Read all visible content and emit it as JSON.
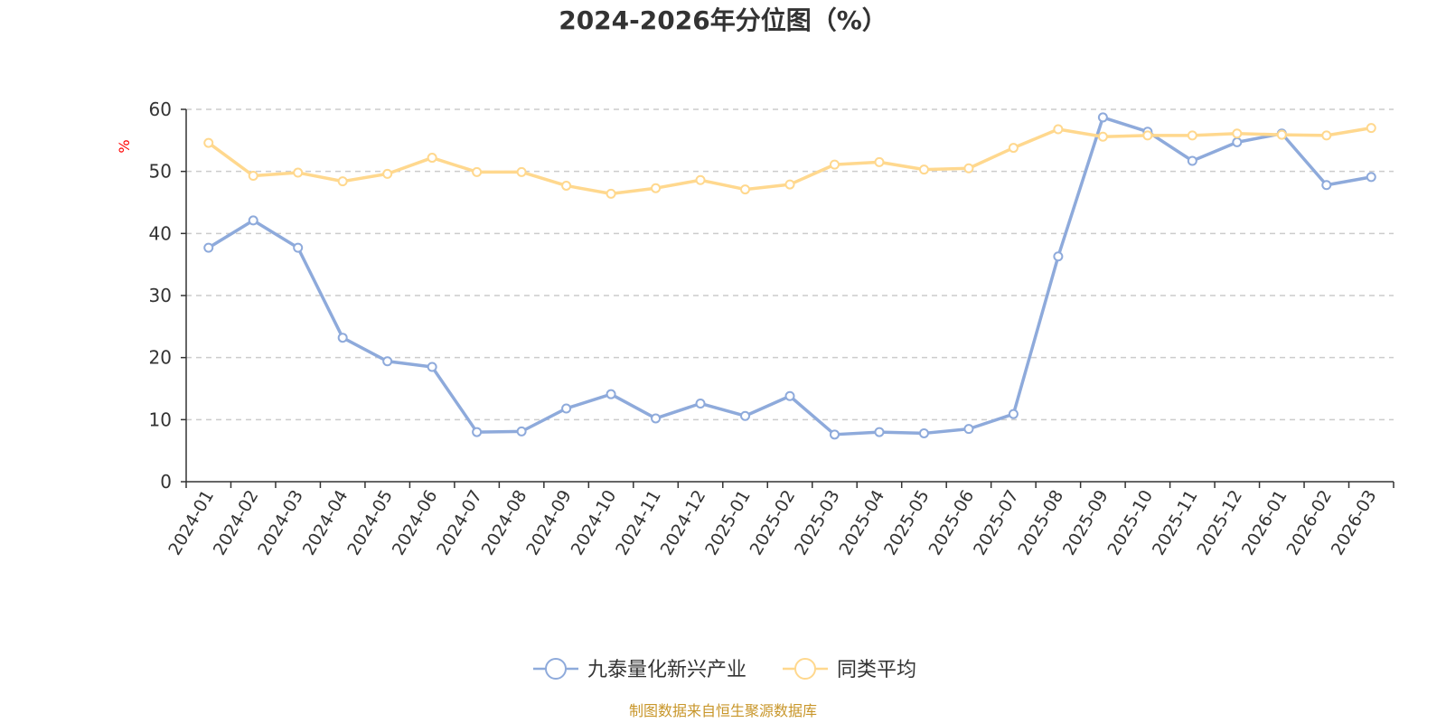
{
  "chart_data": {
    "type": "line",
    "title": "2024-2026年分位图（%）",
    "ylabel": "%",
    "ylim": [
      0,
      60
    ],
    "yticks": [
      0,
      10,
      20,
      30,
      40,
      50,
      60
    ],
    "grid": "horizontal dashed",
    "legend_position": "bottom",
    "categories": [
      "2024-01",
      "2024-02",
      "2024-03",
      "2024-04",
      "2024-05",
      "2024-06",
      "2024-07",
      "2024-08",
      "2024-09",
      "2024-10",
      "2024-11",
      "2024-12",
      "2025-01",
      "2025-02",
      "2025-03",
      "2025-04",
      "2025-05",
      "2025-06",
      "2025-07",
      "2025-08",
      "2025-09",
      "2025-10",
      "2025-11",
      "2025-12",
      "2026-01",
      "2026-02",
      "2026-03"
    ],
    "series": [
      {
        "name": "九泰量化新兴产业",
        "color": "#8eaadb",
        "values": [
          37.7,
          42.1,
          37.7,
          23.2,
          19.4,
          18.5,
          8.0,
          8.1,
          11.8,
          14.1,
          10.2,
          12.6,
          10.6,
          13.8,
          7.6,
          8.0,
          7.8,
          8.5,
          10.9,
          36.3,
          58.7,
          56.4,
          51.7,
          54.7,
          56.1,
          47.8,
          49.1
        ]
      },
      {
        "name": "同类平均",
        "color": "#ffd88e",
        "values": [
          54.6,
          49.3,
          49.8,
          48.4,
          49.6,
          52.2,
          49.9,
          49.9,
          47.7,
          46.4,
          47.3,
          48.6,
          47.1,
          47.9,
          51.1,
          51.5,
          50.3,
          50.5,
          53.8,
          56.8,
          55.6,
          55.8,
          55.8,
          56.1,
          55.9,
          55.8,
          57.0
        ]
      }
    ]
  },
  "source_text": "制图数据来自恒生聚源数据库"
}
